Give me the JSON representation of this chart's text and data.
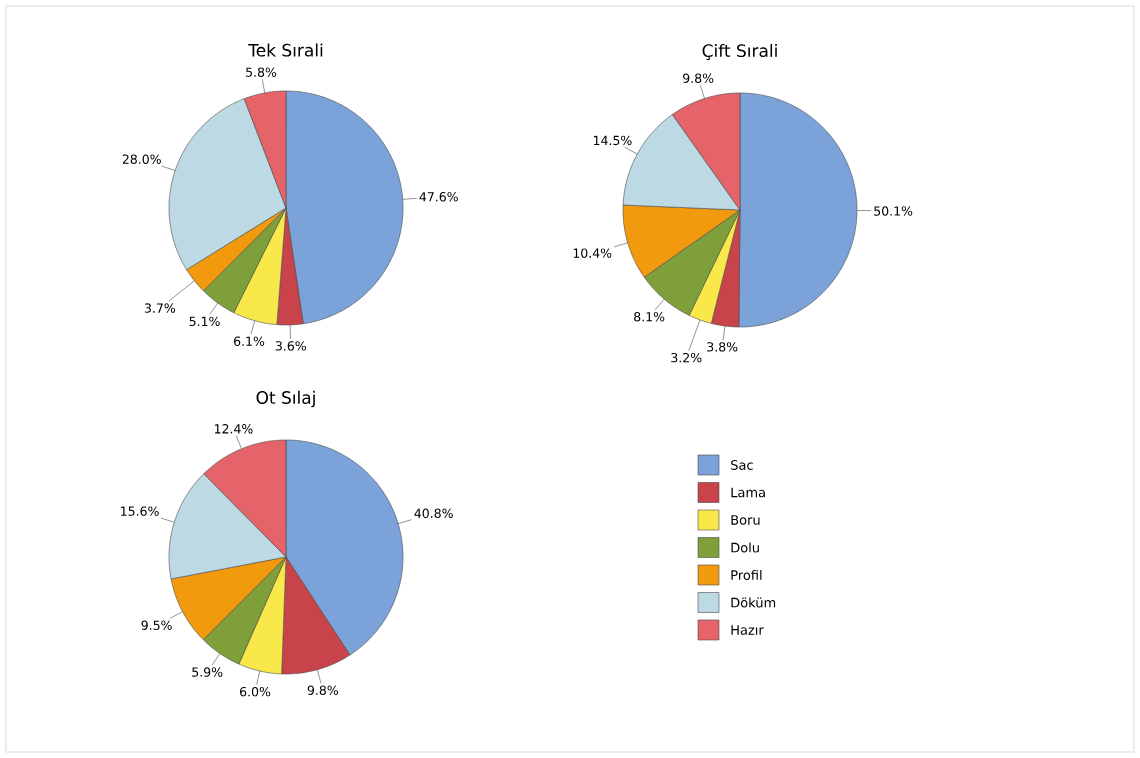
{
  "chart_data": [
    {
      "type": "pie",
      "title": "Tek Sırali",
      "categories": [
        null,
        null,
        null,
        null,
        null,
        null,
        null
      ],
      "values": [
        47.6,
        3.6,
        6.1,
        5.1,
        3.7,
        28.0,
        5.8
      ],
      "value_labels": [
        "47.6%",
        "3.6%",
        "6.1%",
        "5.1%",
        "3.7%",
        "28.0%",
        "5.8%"
      ],
      "colors": [
        "#7ba3d9",
        "#c8444a",
        "#f9e84a",
        "#7f9f3a",
        "#f29a0e",
        "#bcd9e4",
        "#e5646a"
      ]
    },
    {
      "type": "pie",
      "title": "Çift Sırali",
      "categories": [
        null,
        null,
        null,
        null,
        null,
        null,
        null
      ],
      "values": [
        50.1,
        3.8,
        3.2,
        8.1,
        10.4,
        14.5,
        9.8
      ],
      "value_labels": [
        "50.1%",
        "3.8%",
        "3.2%",
        "8.1%",
        "10.4%",
        "14.5%",
        "9.8%"
      ],
      "colors": [
        "#7ba3d9",
        "#c8444a",
        "#f9e84a",
        "#7f9f3a",
        "#f29a0e",
        "#bcd9e4",
        "#e5646a"
      ]
    },
    {
      "type": "pie",
      "title": "Ot Sılaj",
      "categories": [
        "Sac",
        "Lama",
        "Boru",
        "Dolu",
        "Profil",
        "Döküm",
        "Hazır"
      ],
      "values": [
        40.8,
        9.8,
        6.0,
        5.9,
        9.5,
        15.6,
        12.4
      ],
      "value_labels": [
        "40.8%",
        "9.8%",
        "6.0%",
        "5.9%",
        "9.5%",
        "15.6%",
        "12.4%"
      ],
      "colors": [
        "#7ba3d9",
        "#c8444a",
        "#f9e84a",
        "#7f9f3a",
        "#f29a0e",
        "#bcd9e4",
        "#e5646a"
      ],
      "legend": "right"
    }
  ]
}
